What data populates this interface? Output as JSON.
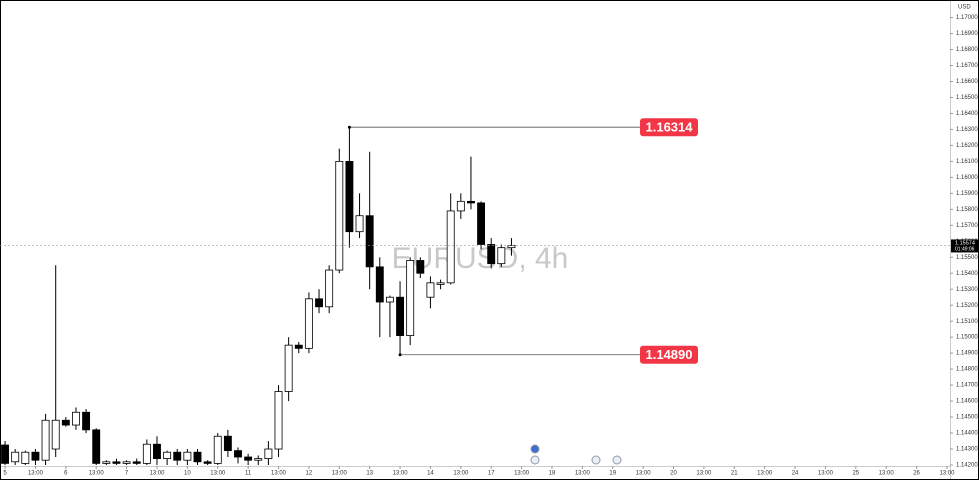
{
  "chart_data": {
    "type": "candlestick",
    "watermark": "EURUSD, 4h",
    "y_unit": "USD",
    "open": [
      1.14325,
      1.1422,
      1.1421,
      1.1428,
      1.1423,
      1.143,
      1.1448,
      1.1445,
      1.1453,
      1.1442,
      1.1421,
      1.1422,
      1.1421,
      1.1422,
      1.1421,
      1.1433,
      1.1424,
      1.1428,
      1.1423,
      1.1428,
      1.1422,
      1.1421,
      1.1438,
      1.1429,
      1.1425,
      1.1423,
      1.1424,
      1.143,
      1.1466,
      1.1495,
      1.1493,
      1.1524,
      1.1519,
      1.1542,
      1.161,
      1.1566,
      1.1576,
      1.1544,
      1.1522,
      1.1525,
      1.1501,
      1.1548,
      1.1525,
      1.1533,
      1.1534,
      1.1579,
      1.1585,
      1.1584,
      1.1558,
      1.1546,
      1.1556
    ],
    "high": [
      1.1435,
      1.143,
      1.1429,
      1.143,
      1.1452,
      1.1545,
      1.145,
      1.1456,
      1.1455,
      1.1443,
      1.1423,
      1.1424,
      1.1423,
      1.1424,
      1.1436,
      1.1438,
      1.1429,
      1.143,
      1.143,
      1.143,
      1.1423,
      1.144,
      1.1442,
      1.1431,
      1.1427,
      1.1426,
      1.1435,
      1.147,
      1.15,
      1.1497,
      1.1528,
      1.153,
      1.1545,
      1.1618,
      1.16314,
      1.159,
      1.1616,
      1.155,
      1.1526,
      1.1535,
      1.155,
      1.155,
      1.1538,
      1.1536,
      1.159,
      1.159,
      1.1613,
      1.1585,
      1.1562,
      1.1558,
      1.1562
    ],
    "low": [
      1.142,
      1.142,
      1.142,
      1.142,
      1.142,
      1.1425,
      1.1444,
      1.1442,
      1.144,
      1.142,
      1.142,
      1.142,
      1.142,
      1.142,
      1.142,
      1.142,
      1.142,
      1.142,
      1.142,
      1.142,
      1.142,
      1.142,
      1.1425,
      1.1421,
      1.142,
      1.142,
      1.142,
      1.1425,
      1.146,
      1.149,
      1.149,
      1.1515,
      1.1515,
      1.154,
      1.1556,
      1.1562,
      1.153,
      1.15,
      1.15,
      1.1489,
      1.1495,
      1.1537,
      1.1518,
      1.153,
      1.1533,
      1.1574,
      1.158,
      1.1555,
      1.1543,
      1.1544,
      1.1551
    ],
    "close": [
      1.1421,
      1.1428,
      1.1428,
      1.1423,
      1.1448,
      1.1448,
      1.1445,
      1.1453,
      1.1442,
      1.1421,
      1.1422,
      1.1421,
      1.1422,
      1.1421,
      1.1433,
      1.1424,
      1.1428,
      1.1423,
      1.1428,
      1.1422,
      1.1421,
      1.1438,
      1.1429,
      1.1425,
      1.1423,
      1.1424,
      1.143,
      1.1466,
      1.1495,
      1.1493,
      1.1524,
      1.1519,
      1.1542,
      1.161,
      1.1566,
      1.1576,
      1.1544,
      1.1522,
      1.1525,
      1.1501,
      1.1548,
      1.154,
      1.1534,
      1.1534,
      1.1579,
      1.1585,
      1.1584,
      1.1558,
      1.1546,
      1.1556,
      1.15574
    ],
    "up_color": "#ffffff",
    "down_color": "#000000",
    "xlim": [
      -0.5,
      93.3
    ],
    "xticks": [
      {
        "value": 0,
        "label": "5"
      },
      {
        "value": 3,
        "label": "13:00"
      },
      {
        "value": 6,
        "label": "6"
      },
      {
        "value": 9,
        "label": "13:00"
      },
      {
        "value": 12,
        "label": "7"
      },
      {
        "value": 15,
        "label": "13:00"
      },
      {
        "value": 18,
        "label": "10"
      },
      {
        "value": 21,
        "label": "13:00"
      },
      {
        "value": 24,
        "label": "11"
      },
      {
        "value": 27,
        "label": "13:00"
      },
      {
        "value": 30,
        "label": "12"
      },
      {
        "value": 33,
        "label": "13:00"
      },
      {
        "value": 36,
        "label": "13"
      },
      {
        "value": 39,
        "label": "13:00"
      },
      {
        "value": 42,
        "label": "14"
      },
      {
        "value": 45,
        "label": "13:00"
      },
      {
        "value": 48,
        "label": "17"
      },
      {
        "value": 51,
        "label": "13:00"
      },
      {
        "value": 54,
        "label": "18"
      },
      {
        "value": 57,
        "label": "13:00"
      },
      {
        "value": 60,
        "label": "19"
      },
      {
        "value": 63,
        "label": "13:00"
      },
      {
        "value": 66,
        "label": "20"
      },
      {
        "value": 69,
        "label": "13:00"
      },
      {
        "value": 72,
        "label": "21"
      },
      {
        "value": 75,
        "label": "13:00"
      },
      {
        "value": 78,
        "label": "24"
      },
      {
        "value": 81,
        "label": "13:00"
      },
      {
        "value": 84,
        "label": "25"
      },
      {
        "value": 87,
        "label": "13:00"
      },
      {
        "value": 90,
        "label": "26"
      },
      {
        "value": 93,
        "label": "13:00"
      }
    ],
    "ylim": [
      1.142,
      1.1711
    ],
    "yticks": [
      {
        "value": 1.142,
        "label": "1.14200"
      },
      {
        "value": 1.143,
        "label": "1.14300"
      },
      {
        "value": 1.144,
        "label": "1.14400"
      },
      {
        "value": 1.145,
        "label": "1.14500"
      },
      {
        "value": 1.146,
        "label": "1.14600"
      },
      {
        "value": 1.147,
        "label": "1.14700"
      },
      {
        "value": 1.148,
        "label": "1.14800"
      },
      {
        "value": 1.149,
        "label": "1.14900"
      },
      {
        "value": 1.15,
        "label": "1.15000"
      },
      {
        "value": 1.151,
        "label": "1.15100"
      },
      {
        "value": 1.152,
        "label": "1.15200"
      },
      {
        "value": 1.153,
        "label": "1.15300"
      },
      {
        "value": 1.154,
        "label": "1.15400"
      },
      {
        "value": 1.155,
        "label": "1.15500"
      },
      {
        "value": 1.156,
        "label": "1.15600"
      },
      {
        "value": 1.157,
        "label": "1.15700"
      },
      {
        "value": 1.158,
        "label": "1.15800"
      },
      {
        "value": 1.159,
        "label": "1.15900"
      },
      {
        "value": 1.16,
        "label": "1.16000"
      },
      {
        "value": 1.161,
        "label": "1.16100"
      },
      {
        "value": 1.162,
        "label": "1.16200"
      },
      {
        "value": 1.163,
        "label": "1.16300"
      },
      {
        "value": 1.164,
        "label": "1.16400"
      },
      {
        "value": 1.165,
        "label": "1.16500"
      },
      {
        "value": 1.166,
        "label": "1.16600"
      },
      {
        "value": 1.167,
        "label": "1.16700"
      },
      {
        "value": 1.168,
        "label": "1.16800"
      },
      {
        "value": 1.169,
        "label": "1.16900"
      },
      {
        "value": 1.17,
        "label": "1.17000"
      }
    ],
    "levels": [
      {
        "value": 1.16314,
        "label": "1.16314",
        "color": "#f23645"
      },
      {
        "value": 1.1489,
        "label": "1.14890",
        "color": "#f23645"
      }
    ],
    "last_price": {
      "value": 1.15574,
      "label": "1.15574",
      "countdown": "01:49:06"
    }
  }
}
